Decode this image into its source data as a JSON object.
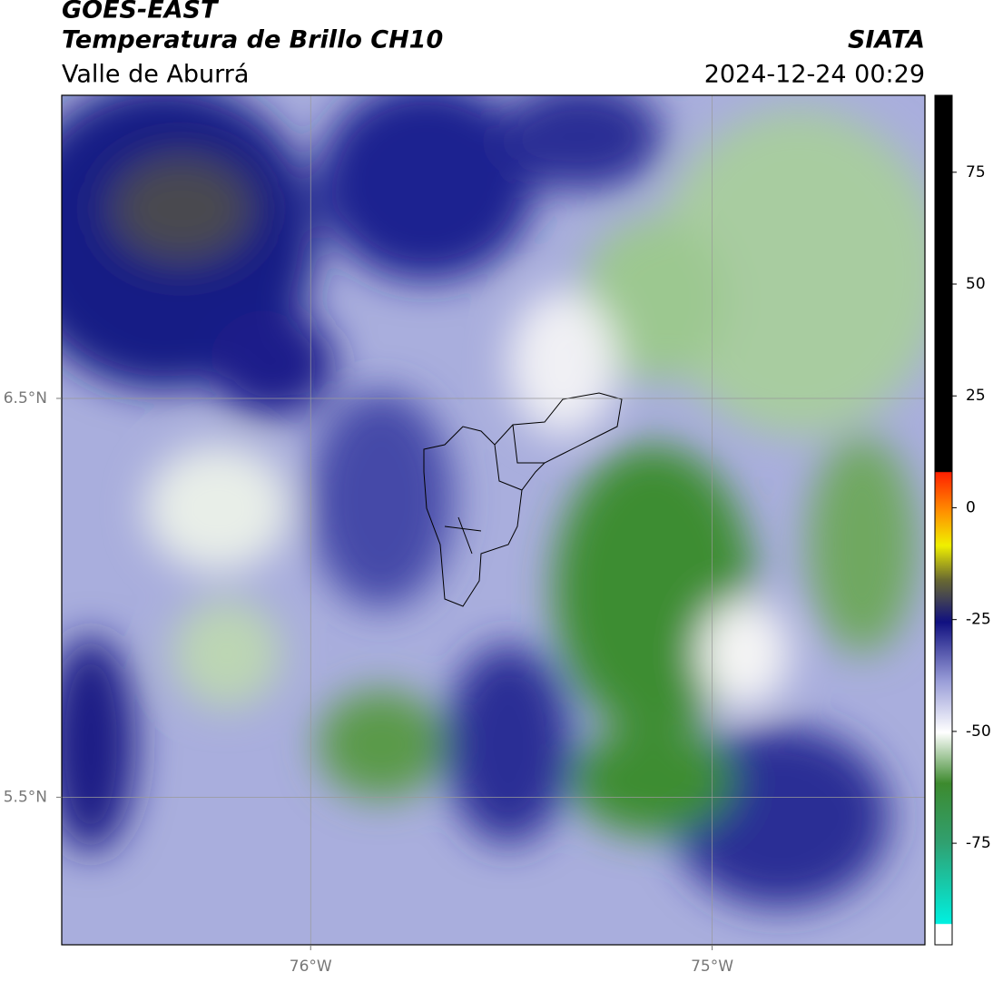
{
  "header": {
    "title": "GOES-EAST",
    "subtitle": "Temperatura de Brillo CH10",
    "region": "Valle de Aburrá",
    "source": "SIATA",
    "datetime": "2024-12-24 00:29"
  },
  "map": {
    "xlim": [
      -76.62,
      -74.47
    ],
    "ylim": [
      5.13,
      7.26
    ],
    "xticks": [
      {
        "value": -76,
        "label": "76°W"
      },
      {
        "value": -75,
        "label": "75°W"
      }
    ],
    "yticks": [
      {
        "value": 6.5,
        "label": "6.5°N"
      },
      {
        "value": 5.5,
        "label": "5.5°N"
      }
    ],
    "grid": true
  },
  "colorbar": {
    "lim": [
      -97.7,
      92.2
    ],
    "ticks": [
      75,
      50,
      25,
      0,
      -25,
      -50,
      -75
    ]
  }
}
